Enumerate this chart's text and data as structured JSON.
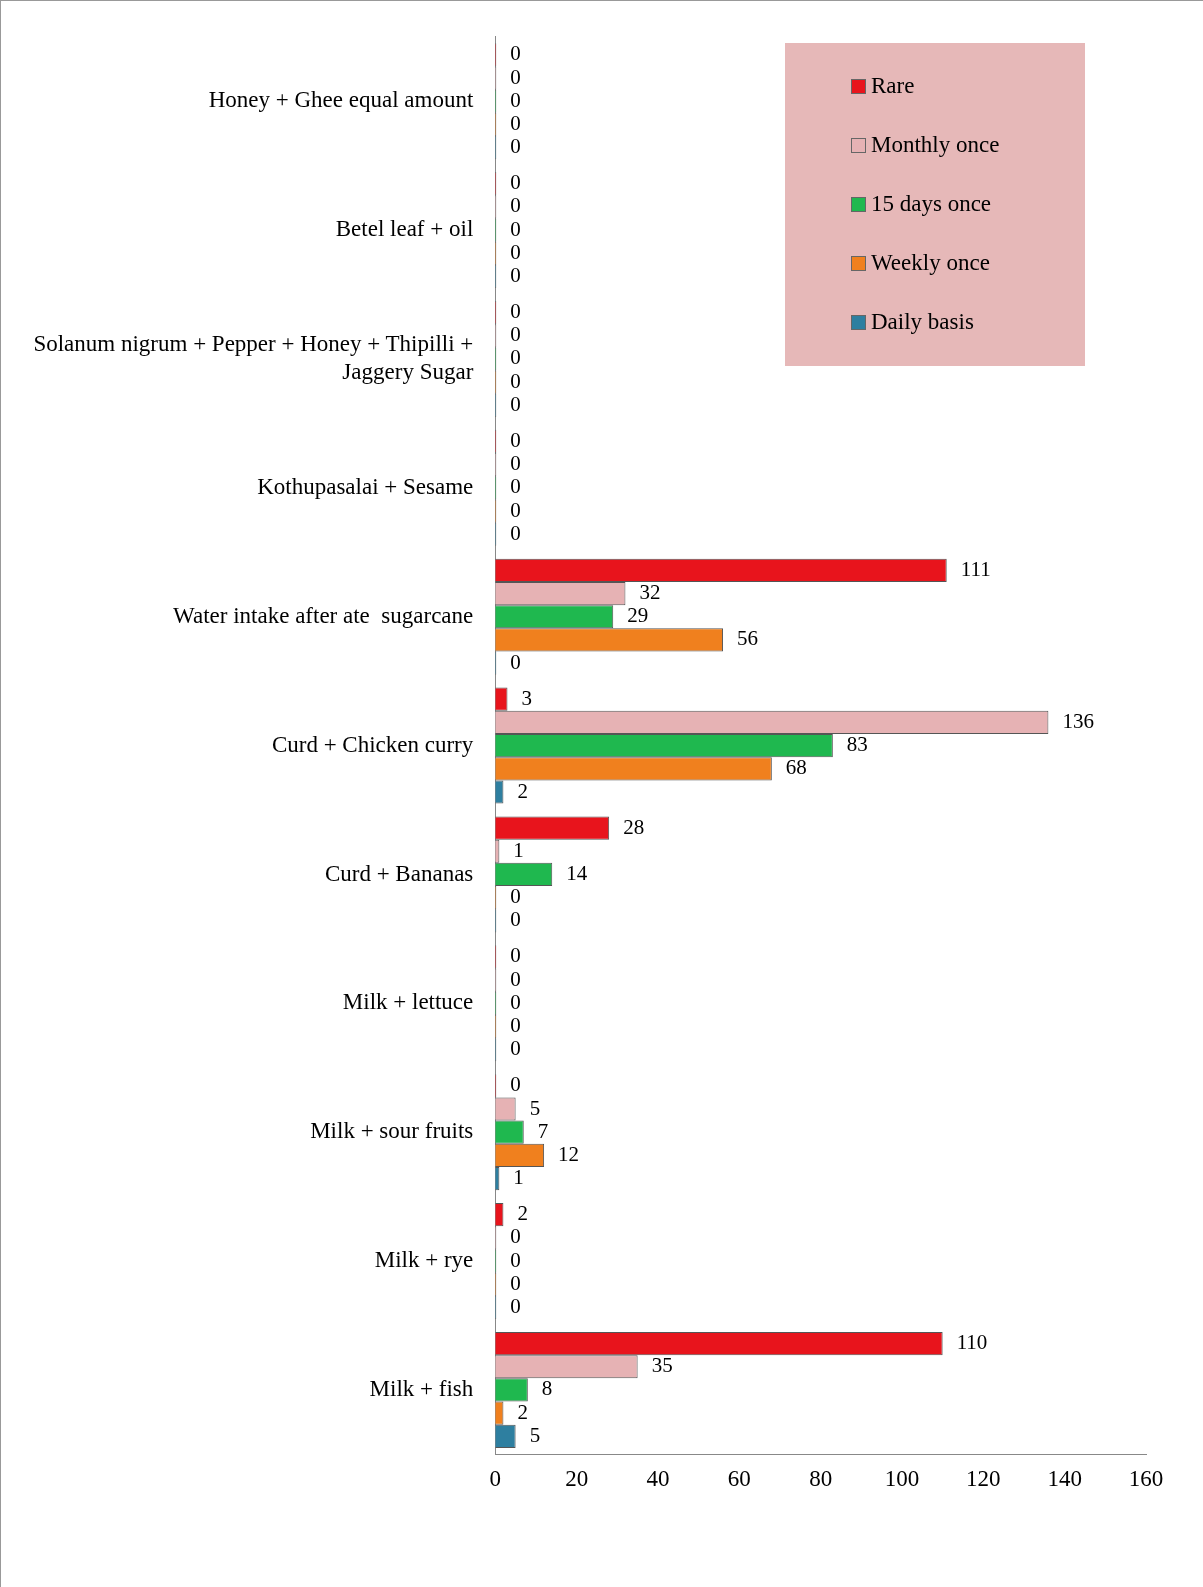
{
  "chart_data": {
    "type": "bar",
    "orientation": "horizontal",
    "categories": [
      "Honey + Ghee equal amount",
      "Betel leaf + oil",
      "Solanum nigrum + Pepper + Honey + Thipilli + Jaggery Sugar",
      "Kothupasalai + Sesame",
      "Water intake after ate  sugarcane",
      "Curd + Chicken curry",
      "Curd + Bananas",
      "Milk + lettuce",
      "Milk + sour fruits",
      "Milk + rye",
      "Milk + fish"
    ],
    "series": [
      {
        "name": "Rare",
        "color": "#e8141c",
        "values": [
          0,
          0,
          0,
          0,
          111,
          3,
          28,
          0,
          0,
          2,
          110
        ]
      },
      {
        "name": "Monthly once",
        "color": "#e6b2b4",
        "values": [
          0,
          0,
          0,
          0,
          32,
          136,
          1,
          0,
          5,
          0,
          35
        ]
      },
      {
        "name": "15 days once",
        "color": "#1fb84f",
        "values": [
          0,
          0,
          0,
          0,
          29,
          83,
          14,
          0,
          7,
          0,
          8
        ]
      },
      {
        "name": "Weekly once",
        "color": "#f0801e",
        "values": [
          0,
          0,
          0,
          0,
          56,
          68,
          0,
          0,
          12,
          0,
          2
        ]
      },
      {
        "name": "Daily basis",
        "color": "#2e7fa0",
        "values": [
          0,
          0,
          0,
          0,
          0,
          2,
          0,
          0,
          1,
          0,
          5
        ]
      }
    ],
    "xlim": [
      0,
      160
    ],
    "xticks": [
      0,
      20,
      40,
      60,
      80,
      100,
      120,
      140,
      160
    ],
    "grid": false,
    "legend": "top right",
    "data_labels": true
  }
}
